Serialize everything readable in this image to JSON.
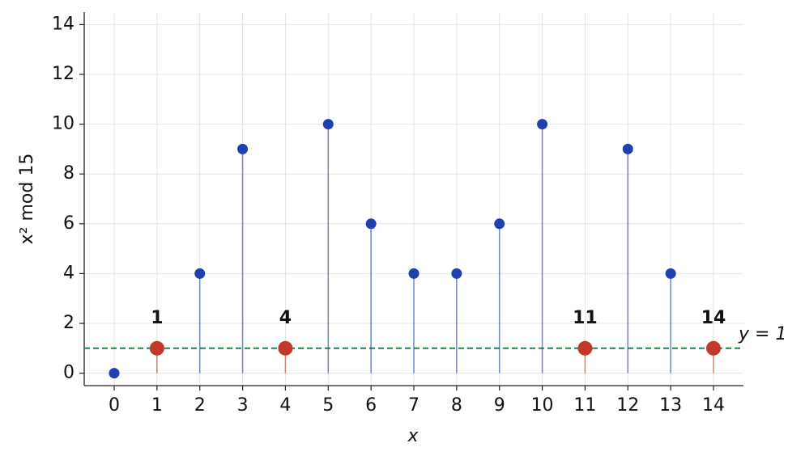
{
  "chart_data": {
    "type": "stem",
    "xlabel": "x",
    "ylabel": "x² mod 15",
    "x": [
      0,
      1,
      2,
      3,
      4,
      5,
      6,
      7,
      8,
      9,
      10,
      11,
      12,
      13,
      14
    ],
    "series": [
      {
        "color": "#2140b0",
        "values": [
          0,
          null,
          4,
          9,
          null,
          10,
          6,
          4,
          4,
          6,
          10,
          null,
          9,
          4,
          null
        ]
      },
      {
        "color": "#c0392b",
        "values": [
          null,
          1,
          null,
          null,
          1,
          null,
          null,
          null,
          null,
          null,
          null,
          1,
          null,
          null,
          1
        ]
      }
    ],
    "annotations": [
      {
        "x": 1,
        "y": 1,
        "text": "1"
      },
      {
        "x": 4,
        "y": 1,
        "text": "4"
      },
      {
        "x": 11,
        "y": 1,
        "text": "11"
      },
      {
        "x": 14,
        "y": 1,
        "text": "14"
      }
    ],
    "hline": {
      "value": 1,
      "label": "y = 1",
      "color": "#1e8449"
    },
    "xlim": [
      -0.7,
      14.7
    ],
    "ylim": [
      -0.5,
      14.5
    ],
    "xticks": [
      0,
      1,
      2,
      3,
      4,
      5,
      6,
      7,
      8,
      9,
      10,
      11,
      12,
      13,
      14
    ],
    "yticks": [
      0,
      2,
      4,
      6,
      8,
      10,
      12,
      14
    ],
    "grid": true
  }
}
